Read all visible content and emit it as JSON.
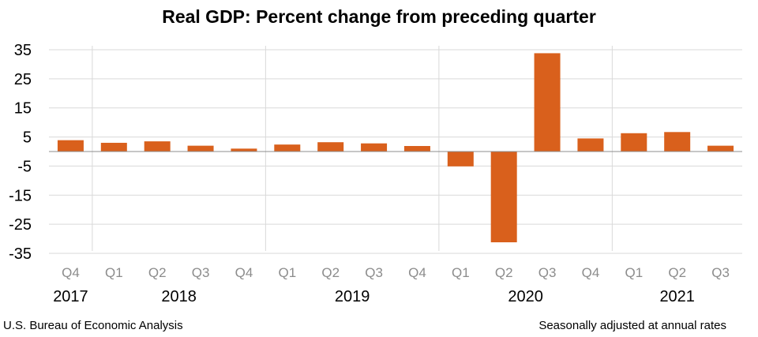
{
  "chart_data": {
    "type": "bar",
    "title": "Real GDP:  Percent change from preceding quarter",
    "categories": [
      "Q4",
      "Q1",
      "Q2",
      "Q3",
      "Q4",
      "Q1",
      "Q2",
      "Q3",
      "Q4",
      "Q1",
      "Q2",
      "Q3",
      "Q4",
      "Q1",
      "Q2",
      "Q3"
    ],
    "years": [
      {
        "label": "2017",
        "start": 0,
        "end": 0
      },
      {
        "label": "2018",
        "start": 1,
        "end": 4
      },
      {
        "label": "2019",
        "start": 5,
        "end": 8
      },
      {
        "label": "2020",
        "start": 9,
        "end": 12
      },
      {
        "label": "2021",
        "start": 13,
        "end": 15
      }
    ],
    "values": [
      3.9,
      3.0,
      3.5,
      2.0,
      1.0,
      2.4,
      3.2,
      2.8,
      1.9,
      -5.1,
      -31.2,
      33.8,
      4.5,
      6.3,
      6.7,
      2.0
    ],
    "yticks": [
      35,
      25,
      15,
      5,
      -5,
      -15,
      -25,
      -35
    ],
    "ylim": [
      -35,
      35
    ],
    "grid": true,
    "bar_color": "#D9601C",
    "xlabel": "",
    "ylabel": ""
  },
  "footer": {
    "source": "U.S. Bureau of Economic Analysis",
    "note": "Seasonally adjusted at annual rates"
  }
}
